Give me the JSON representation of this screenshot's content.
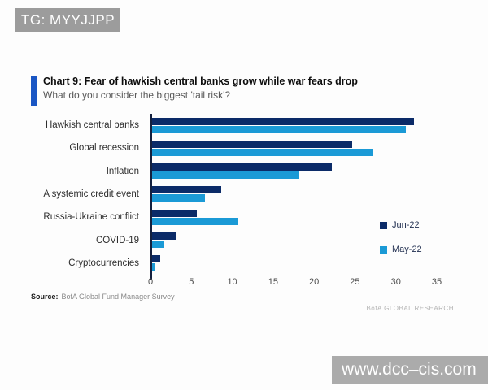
{
  "watermarks": {
    "top_left": "TG: MYYJJPP",
    "bottom_right": "www.dcc–cis.com"
  },
  "header": {
    "title": "Chart 9: Fear of hawkish central banks grow while war fears drop",
    "subtitle": "What do you consider the biggest 'tail risk'?",
    "accent_color": "#1a56c4"
  },
  "chart_data": {
    "type": "bar",
    "orientation": "horizontal",
    "categories": [
      "Hawkish central banks",
      "Global recession",
      "Inflation",
      "A systemic credit event",
      "Russia-Ukraine conflict",
      "COVID-19",
      "Cryptocurrencies"
    ],
    "series": [
      {
        "name": "Jun-22",
        "color": "#0b2b68",
        "values": [
          32,
          24.5,
          22,
          8.5,
          5.5,
          3,
          1
        ]
      },
      {
        "name": "May-22",
        "color": "#1b9ad6",
        "values": [
          31,
          27,
          18,
          6.5,
          10.5,
          1.5,
          0.3
        ]
      }
    ],
    "xlim": [
      0,
      35
    ],
    "xticks": [
      0,
      5,
      10,
      15,
      20,
      25,
      30,
      35
    ],
    "legend_position": "right",
    "grid": false
  },
  "footer": {
    "source_label": "Source:",
    "source_text": "BofA Global Fund Manager Survey",
    "brand": "BofA GLOBAL RESEARCH"
  }
}
